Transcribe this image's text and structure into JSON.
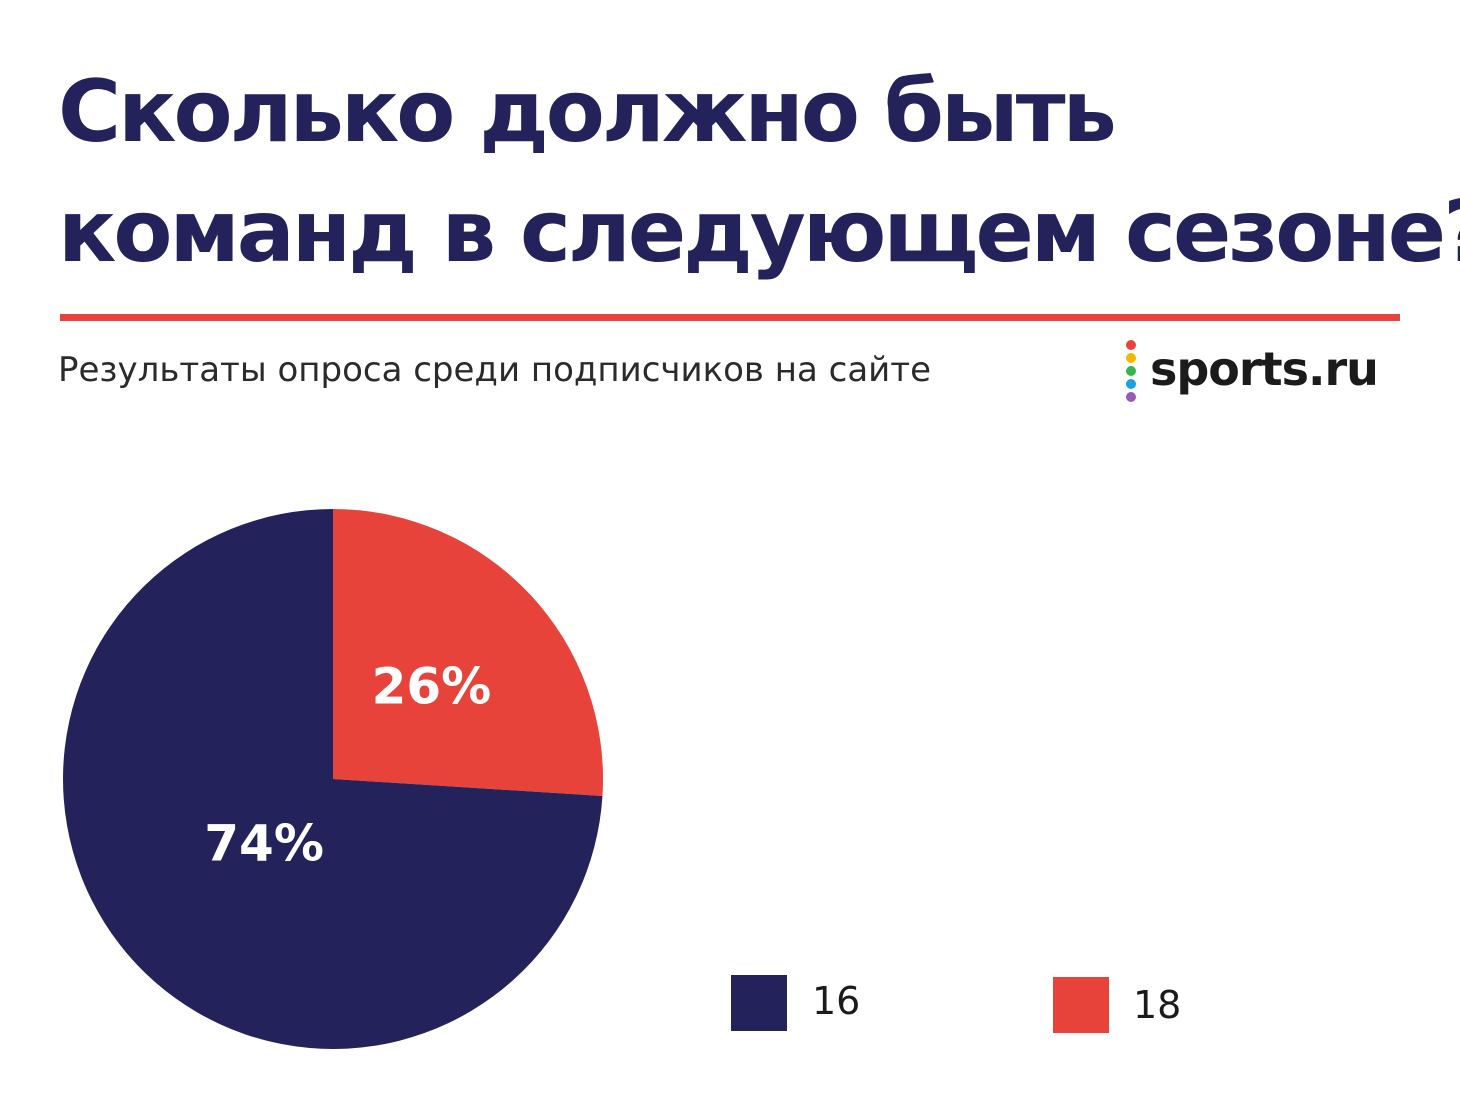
{
  "header": {
    "title_line1": "Сколько должно быть",
    "title_line2": "команд в следующем сезоне?",
    "subtitle": "Результаты опроса среди подписчиков на сайте"
  },
  "logo": {
    "text": "sports.ru",
    "dot_colors": [
      "#e8433a",
      "#f5b800",
      "#3ab54a",
      "#1aa3e0",
      "#9b59b6"
    ]
  },
  "colors": {
    "title": "#24225a",
    "accent_rule": "#e8433a"
  },
  "chart_data": {
    "type": "pie",
    "title": "Сколько должно быть команд в следующем сезоне?",
    "subtitle": "Результаты опроса среди подписчиков на сайте",
    "slices": [
      {
        "name": "18",
        "value": 26,
        "label": "26%",
        "color": "#e8433a"
      },
      {
        "name": "16",
        "value": 74,
        "label": "74%",
        "color": "#24225a"
      }
    ],
    "legend": [
      {
        "name": "16",
        "color": "#24225a"
      },
      {
        "name": "18",
        "color": "#e8433a"
      }
    ],
    "legend_position": "bottom-right",
    "start_angle": "12 o'clock, clockwise"
  }
}
